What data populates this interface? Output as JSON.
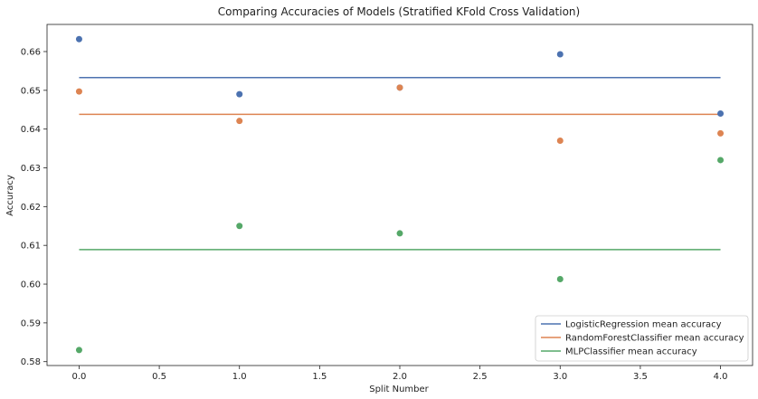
{
  "chart_data": {
    "type": "scatter",
    "title": "Comparing Accuracies of Models (Stratified KFold Cross Validation)",
    "xlabel": "Split Number",
    "ylabel": "Accuracy",
    "xlim": [
      -0.2,
      4.2
    ],
    "ylim": [
      0.579,
      0.667
    ],
    "xticks": [
      0.0,
      0.5,
      1.0,
      1.5,
      2.0,
      2.5,
      3.0,
      3.5,
      4.0
    ],
    "xtick_labels": [
      "0.0",
      "0.5",
      "1.0",
      "1.5",
      "2.0",
      "2.5",
      "3.0",
      "3.5",
      "4.0"
    ],
    "yticks": [
      0.58,
      0.59,
      0.6,
      0.61,
      0.62,
      0.63,
      0.64,
      0.65,
      0.66
    ],
    "ytick_labels": [
      "0.58",
      "0.59",
      "0.60",
      "0.61",
      "0.62",
      "0.63",
      "0.64",
      "0.65",
      "0.66"
    ],
    "grid": false,
    "legend_position": "bottom-right",
    "x": [
      0,
      1,
      2,
      3,
      4
    ],
    "series": [
      {
        "name": "LogisticRegression",
        "color": "#4c72b0",
        "values": [
          0.6632,
          0.649,
          0.6507,
          0.6593,
          0.644
        ],
        "mean": 0.6533,
        "mean_label": "LogisticRegression mean accuracy"
      },
      {
        "name": "RandomForestClassifier",
        "color": "#dd8452",
        "values": [
          0.6497,
          0.6421,
          0.6507,
          0.637,
          0.6389
        ],
        "mean": 0.6438,
        "mean_label": "RandomForestClassifier mean accuracy"
      },
      {
        "name": "MLPClassifier",
        "color": "#55a868",
        "values": [
          0.583,
          0.615,
          0.6131,
          0.6013,
          0.632
        ],
        "mean": 0.6089,
        "mean_label": "MLPClassifier mean accuracy"
      }
    ]
  }
}
